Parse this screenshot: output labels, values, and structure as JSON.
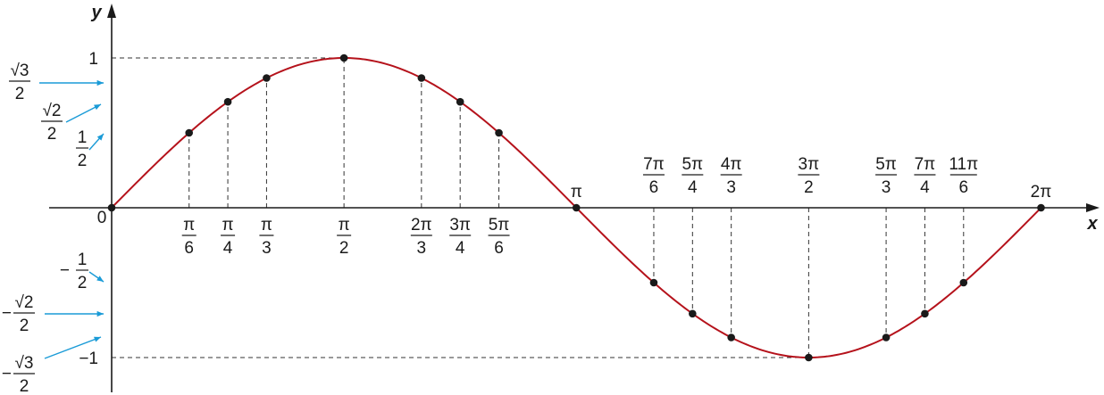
{
  "chart_data": {
    "type": "line",
    "function": "y = sin x",
    "xlabel": "x",
    "ylabel": "y",
    "xlim": [
      -0.42,
      6.62
    ],
    "ylim": [
      -1.24,
      1.24
    ],
    "origin_label": "0",
    "colors": {
      "curve": "#b5121b",
      "axes": "#1a1a1a",
      "guide": "#333333",
      "arrow": "#1a9bd7"
    },
    "curve": {
      "x": [
        0,
        0.3927,
        0.7854,
        1.1781,
        1.5708,
        1.9635,
        2.3562,
        2.7489,
        3.1416,
        3.5343,
        3.927,
        4.3197,
        4.7124,
        5.1051,
        5.4978,
        5.8905,
        6.2832
      ],
      "y": [
        0,
        0.3827,
        0.7071,
        0.9239,
        1,
        0.9239,
        0.7071,
        0.3827,
        0,
        -0.3827,
        -0.7071,
        -0.9239,
        -1,
        -0.9239,
        -0.7071,
        -0.3827,
        0
      ]
    },
    "points": [
      {
        "x": 0,
        "y": 0
      },
      {
        "x": 0.5236,
        "y": 0.5
      },
      {
        "x": 0.7854,
        "y": 0.7071
      },
      {
        "x": 1.0472,
        "y": 0.866
      },
      {
        "x": 1.5708,
        "y": 1
      },
      {
        "x": 2.0944,
        "y": 0.866
      },
      {
        "x": 2.3562,
        "y": 0.7071
      },
      {
        "x": 2.618,
        "y": 0.5
      },
      {
        "x": 3.1416,
        "y": 0
      },
      {
        "x": 3.6652,
        "y": -0.5
      },
      {
        "x": 3.927,
        "y": -0.7071
      },
      {
        "x": 4.1888,
        "y": -0.866
      },
      {
        "x": 4.7124,
        "y": -1
      },
      {
        "x": 5.236,
        "y": -0.866
      },
      {
        "x": 5.4978,
        "y": -0.7071
      },
      {
        "x": 5.7596,
        "y": -0.5
      },
      {
        "x": 6.2832,
        "y": 0
      }
    ],
    "x_ticks": [
      {
        "value": 0.5236,
        "num": "π",
        "den": "6",
        "position": "below"
      },
      {
        "value": 0.7854,
        "num": "π",
        "den": "4",
        "position": "below"
      },
      {
        "value": 1.0472,
        "num": "π",
        "den": "3",
        "position": "below"
      },
      {
        "value": 1.5708,
        "num": "π",
        "den": "2",
        "position": "below"
      },
      {
        "value": 2.0944,
        "num": "2π",
        "den": "3",
        "position": "below"
      },
      {
        "value": 2.3562,
        "num": "3π",
        "den": "4",
        "position": "below"
      },
      {
        "value": 2.618,
        "num": "5π",
        "den": "6",
        "position": "below"
      },
      {
        "value": 3.1416,
        "text": "π",
        "position": "above"
      },
      {
        "value": 3.6652,
        "num": "7π",
        "den": "6",
        "position": "above"
      },
      {
        "value": 3.927,
        "num": "5π",
        "den": "4",
        "position": "above"
      },
      {
        "value": 4.1888,
        "num": "4π",
        "den": "3",
        "position": "above"
      },
      {
        "value": 4.7124,
        "num": "3π",
        "den": "2",
        "position": "above"
      },
      {
        "value": 5.236,
        "num": "5π",
        "den": "3",
        "position": "above"
      },
      {
        "value": 5.4978,
        "num": "7π",
        "den": "4",
        "position": "above"
      },
      {
        "value": 5.7596,
        "num": "11π",
        "den": "6",
        "position": "above"
      },
      {
        "value": 6.2832,
        "text": "2π",
        "position": "above"
      }
    ],
    "y_ticks": [
      {
        "value": 1,
        "text": "1"
      },
      {
        "value": -1,
        "text": "−1"
      }
    ],
    "y_callouts": [
      {
        "value": 0.866,
        "sign": "",
        "num": "√3",
        "den": "2"
      },
      {
        "value": 0.7071,
        "sign": "",
        "num": "√2",
        "den": "2"
      },
      {
        "value": 0.5,
        "sign": "",
        "num": "1",
        "den": "2"
      },
      {
        "value": -0.5,
        "sign": "−",
        "num": "1",
        "den": "2"
      },
      {
        "value": -0.7071,
        "sign": "−",
        "num": "√2",
        "den": "2"
      },
      {
        "value": -0.866,
        "sign": "−",
        "num": "√3",
        "den": "2"
      }
    ]
  }
}
